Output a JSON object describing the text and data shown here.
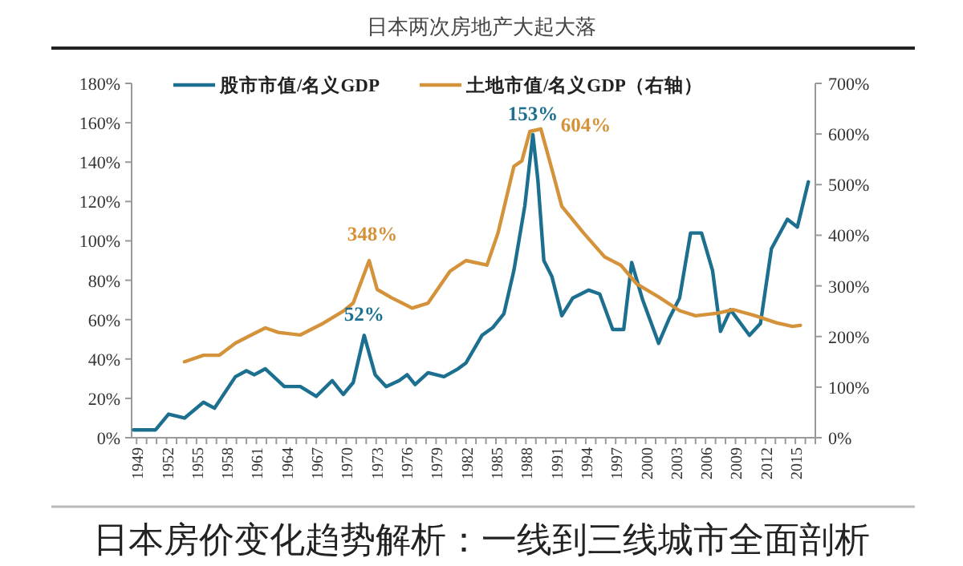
{
  "chart_data": {
    "type": "line",
    "title": "日本两次房地产大起大落",
    "xlim": [
      1948.5,
      2017
    ],
    "xticks": [
      1949,
      {
        "value": 1950,
        "label": null
      },
      {
        "value": 1951,
        "label": null
      },
      1952,
      {
        "value": 1953,
        "label": null
      },
      {
        "value": 1954,
        "label": null
      },
      1955,
      {
        "value": 1956,
        "label": null
      },
      {
        "value": 1957,
        "label": null
      },
      1958,
      {
        "value": 1959,
        "label": null
      },
      {
        "value": 1960,
        "label": null
      },
      1961,
      {
        "value": 1962,
        "label": null
      },
      {
        "value": 1963,
        "label": null
      },
      1964,
      {
        "value": 1965,
        "label": null
      },
      {
        "value": 1966,
        "label": null
      },
      1967,
      {
        "value": 1968,
        "label": null
      },
      {
        "value": 1969,
        "label": null
      },
      1970,
      {
        "value": 1971,
        "label": null
      },
      {
        "value": 1972,
        "label": null
      },
      1973,
      {
        "value": 1974,
        "label": null
      },
      {
        "value": 1975,
        "label": null
      },
      1976,
      {
        "value": 1977,
        "label": null
      },
      {
        "value": 1978,
        "label": null
      },
      1979,
      {
        "value": 1980,
        "label": null
      },
      {
        "value": 1981,
        "label": null
      },
      1982,
      {
        "value": 1983,
        "label": null
      },
      {
        "value": 1984,
        "label": null
      },
      1985,
      {
        "value": 1986,
        "label": null
      },
      {
        "value": 1987,
        "label": null
      },
      1988,
      {
        "value": 1989,
        "label": null
      },
      {
        "value": 1990,
        "label": null
      },
      1991,
      {
        "value": 1992,
        "label": null
      },
      {
        "value": 1993,
        "label": null
      },
      1994,
      {
        "value": 1995,
        "label": null
      },
      {
        "value": 1996,
        "label": null
      },
      1997,
      {
        "value": 1998,
        "label": null
      },
      {
        "value": 1999,
        "label": null
      },
      2000,
      {
        "value": 2001,
        "label": null
      },
      {
        "value": 2002,
        "label": null
      },
      2003,
      {
        "value": 2004,
        "label": null
      },
      {
        "value": 2005,
        "label": null
      },
      2006,
      {
        "value": 2007,
        "label": null
      },
      {
        "value": 2008,
        "label": null
      },
      2009,
      {
        "value": 2010,
        "label": null
      },
      {
        "value": 2011,
        "label": null
      },
      2012,
      {
        "value": 2013,
        "label": null
      },
      {
        "value": 2014,
        "label": null
      },
      2015,
      {
        "value": 2016,
        "label": null
      },
      {
        "value": 2017,
        "label": null
      }
    ],
    "ylim": [
      0,
      180
    ],
    "yticks": [
      {
        "value": 0,
        "label": "0%"
      },
      {
        "value": 20,
        "label": "20%"
      },
      {
        "value": 40,
        "label": "40%"
      },
      {
        "value": 60,
        "label": "60%"
      },
      {
        "value": 80,
        "label": "80%"
      },
      {
        "value": 100,
        "label": "100%"
      },
      {
        "value": 120,
        "label": "120%"
      },
      {
        "value": 140,
        "label": "140%"
      },
      {
        "value": 160,
        "label": "160%"
      },
      {
        "value": 180,
        "label": "180%"
      }
    ],
    "y2lim": [
      0,
      700
    ],
    "y2ticks": [
      {
        "value": 0,
        "label": "0%"
      },
      {
        "value": 100,
        "label": "100%"
      },
      {
        "value": 200,
        "label": "200%"
      },
      {
        "value": 300,
        "label": "300%"
      },
      {
        "value": 400,
        "label": "400%"
      },
      {
        "value": 500,
        "label": "500%"
      },
      {
        "value": 600,
        "label": "600%"
      },
      {
        "value": 700,
        "label": "700%"
      }
    ],
    "legend": "top",
    "grid": false,
    "series": [
      {
        "name": "股市市值/名义GDP",
        "color": "#1c6f8f",
        "x": [
          1948.7,
          1950.9,
          1952.2,
          1953.8,
          1955.7,
          1956.8,
          1958.9,
          1960.0,
          1960.8,
          1961.9,
          1963.8,
          1965.4,
          1967.0,
          1968.6,
          1969.7,
          1970.7,
          1971.8,
          1972.9,
          1974.0,
          1975.3,
          1976.1,
          1976.9,
          1978.2,
          1979.8,
          1981.2,
          1982.0,
          1983.6,
          1984.7,
          1985.8,
          1986.8,
          1987.9,
          1988.7,
          1989.2,
          1989.8,
          1990.6,
          1991.6,
          1992.7,
          1994.3,
          1995.4,
          1996.7,
          1997.8,
          1998.6,
          1999.7,
          2001.3,
          2002.4,
          2003.4,
          2004.5,
          2005.6,
          2006.7,
          2007.5,
          2008.5,
          2010.4,
          2011.5,
          2012.6,
          2014.2,
          2015.2,
          2016.3
        ],
        "values": [
          4,
          4,
          12,
          10,
          18,
          15,
          31,
          34,
          32,
          35,
          26,
          26,
          21,
          29,
          22,
          28,
          52,
          32,
          26,
          29,
          32,
          27,
          33,
          31,
          35,
          38,
          52,
          56,
          63,
          85,
          118,
          154,
          131,
          90,
          82,
          62,
          71,
          75,
          73,
          55,
          55,
          89,
          70,
          48,
          61,
          71,
          104,
          104,
          85,
          54,
          65,
          52,
          58,
          96,
          111,
          107,
          130
        ]
      },
      {
        "name": "土地市值/名义GDP（右轴）",
        "color": "#d4923a",
        "axis": "y2",
        "x": [
          1953.8,
          1955.7,
          1957.3,
          1958.9,
          1960.5,
          1961.9,
          1963.2,
          1965.4,
          1967.5,
          1969.7,
          1970.7,
          1972.3,
          1973.1,
          1974.5,
          1976.6,
          1978.2,
          1980.4,
          1982.0,
          1984.1,
          1985.2,
          1986.8,
          1987.6,
          1988.4,
          1989.5,
          1990.6,
          1991.6,
          1993.8,
          1995.9,
          1997.5,
          1999.1,
          2001.3,
          2003.4,
          2005.0,
          2007.2,
          2008.8,
          2011.0,
          2013.1,
          2014.7,
          2015.5
        ],
        "values": [
          150,
          163,
          163,
          187,
          203,
          217,
          208,
          203,
          224,
          250,
          266,
          350,
          293,
          277,
          256,
          266,
          329,
          350,
          341,
          404,
          536,
          547,
          605,
          610,
          531,
          457,
          404,
          357,
          341,
          304,
          278,
          251,
          241,
          246,
          253,
          241,
          227,
          220,
          222
        ]
      }
    ],
    "annotations": [
      "348%",
      {
        "text": "52%",
        "x": 1971.8,
        "y": 52
      },
      {
        "text": "153%",
        "x": 1988.7,
        "y": 154
      },
      "604%",
      "日本房价变化趋势解析：一线到三线城市全面剖析"
    ]
  }
}
